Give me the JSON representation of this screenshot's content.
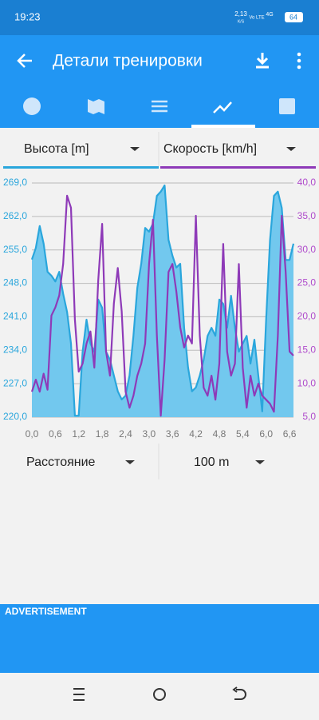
{
  "status_bar": {
    "time": "19:23",
    "speed": "2,13",
    "speed_unit": "K/S",
    "network": "4G",
    "volte": "Vo LTE",
    "battery": "64"
  },
  "header": {
    "title": "Детали тренировки"
  },
  "chart_data": {
    "type": "line",
    "x": [
      0,
      0.1,
      0.2,
      0.3,
      0.4,
      0.5,
      0.6,
      0.7,
      0.8,
      0.9,
      1,
      1.1,
      1.2,
      1.3,
      1.4,
      1.5,
      1.6,
      1.7,
      1.8,
      1.9,
      2,
      2.1,
      2.2,
      2.3,
      2.4,
      2.5,
      2.6,
      2.7,
      2.8,
      2.9,
      3,
      3.1,
      3.2,
      3.3,
      3.4,
      3.5,
      3.6,
      3.7,
      3.8,
      3.9,
      4,
      4.1,
      4.2,
      4.3,
      4.4,
      4.5,
      4.6,
      4.7,
      4.8,
      4.9,
      5,
      5.1,
      5.2,
      5.3,
      5.4,
      5.5,
      5.6,
      5.7,
      5.8,
      5.9,
      6,
      6.1,
      6.2,
      6.3,
      6.4,
      6.5,
      6.6,
      6.7
    ],
    "series": [
      {
        "name": "Высота [m]",
        "color": "#2aa6dc",
        "fill": "#72c8ee",
        "values": [
          253,
          255.4,
          260,
          256.3,
          250.4,
          249.6,
          248.4,
          250.4,
          245.8,
          242,
          235.4,
          220.3,
          220.3,
          233.7,
          240.4,
          235.4,
          233.7,
          244.6,
          242.9,
          233.7,
          232,
          228.7,
          225.4,
          223.7,
          224.5,
          228.7,
          237,
          247.1,
          252.1,
          259.6,
          258.8,
          260.5,
          266.3,
          267.2,
          268.5,
          257.1,
          253.8,
          251.3,
          252.1,
          238.7,
          230.4,
          225.4,
          226.2,
          228.7,
          232,
          237,
          238.7,
          237,
          244.6,
          243.7,
          238.7,
          245.4,
          238.7,
          233.7,
          235.4,
          237,
          231.2,
          236.2,
          228.7,
          221.2,
          240.4,
          257.1,
          266.3,
          267.2,
          263.8,
          252.9,
          252.9,
          256.3
        ]
      },
      {
        "name": "Скорость [km/h]",
        "color": "#8e3ab8",
        "axis": "y2",
        "values": [
          8.8,
          10.6,
          8.8,
          11.5,
          9.1,
          20.2,
          21.4,
          23.2,
          27.9,
          38.1,
          36.3,
          19.6,
          11.8,
          13,
          16,
          17.8,
          12.4,
          25.5,
          33.9,
          14.8,
          11.2,
          22,
          27.3,
          20.8,
          8.8,
          6.4,
          8.2,
          11.2,
          13,
          16,
          27.9,
          34.5,
          17.2,
          5.2,
          13.6,
          26.7,
          27.9,
          23.8,
          18.4,
          15.4,
          17.2,
          16,
          35.1,
          17.2,
          9.4,
          8.2,
          11.2,
          7.6,
          13,
          30.9,
          14.8,
          11.2,
          13,
          27.9,
          12.4,
          6.4,
          11.2,
          8.2,
          10,
          8.2,
          7.6,
          7,
          5.8,
          17.2,
          35.1,
          26.7,
          14.8,
          14.2
        ]
      }
    ],
    "xlim": [
      0,
      6.7
    ],
    "xticks": [
      {
        "value": 0,
        "label": "0,0"
      },
      {
        "value": 0.6,
        "label": "0,6"
      },
      {
        "value": 1.2,
        "label": "1,2"
      },
      {
        "value": 1.8,
        "label": "1,8"
      },
      {
        "value": 2.4,
        "label": "2,4"
      },
      {
        "value": 3,
        "label": "3,0"
      },
      {
        "value": 3.6,
        "label": "3,6"
      },
      {
        "value": 4.2,
        "label": "4,2"
      },
      {
        "value": 4.8,
        "label": "4,8"
      },
      {
        "value": 5.4,
        "label": "5,4"
      },
      {
        "value": 6,
        "label": "6,0"
      },
      {
        "value": 6.6,
        "label": "6,6"
      }
    ],
    "ylim": [
      220,
      269
    ],
    "yticks": [
      {
        "value": 220,
        "label": "220,0"
      },
      {
        "value": 227,
        "label": "227,0"
      },
      {
        "value": 234,
        "label": "234,0"
      },
      {
        "value": 241,
        "label": "241,0"
      },
      {
        "value": 248,
        "label": "248,0"
      },
      {
        "value": 255,
        "label": "255,0"
      },
      {
        "value": 262,
        "label": "262,0"
      },
      {
        "value": 269,
        "label": "269,0"
      }
    ],
    "y2lim": [
      5,
      40
    ],
    "y2ticks": [
      {
        "value": 5,
        "label": "5,0"
      },
      {
        "value": 10,
        "label": "10,0"
      },
      {
        "value": 15,
        "label": "15,0"
      },
      {
        "value": 20,
        "label": "20,0"
      },
      {
        "value": 25,
        "label": "25,0"
      },
      {
        "value": 30,
        "label": "30,0"
      },
      {
        "value": 35,
        "label": "35,0"
      },
      {
        "value": 40,
        "label": "40,0"
      }
    ],
    "grid": true
  },
  "bottom_selectors": {
    "x_axis": "Расстояние",
    "interval": "100 m"
  },
  "ad": {
    "label": "ADVERTISEMENT"
  }
}
